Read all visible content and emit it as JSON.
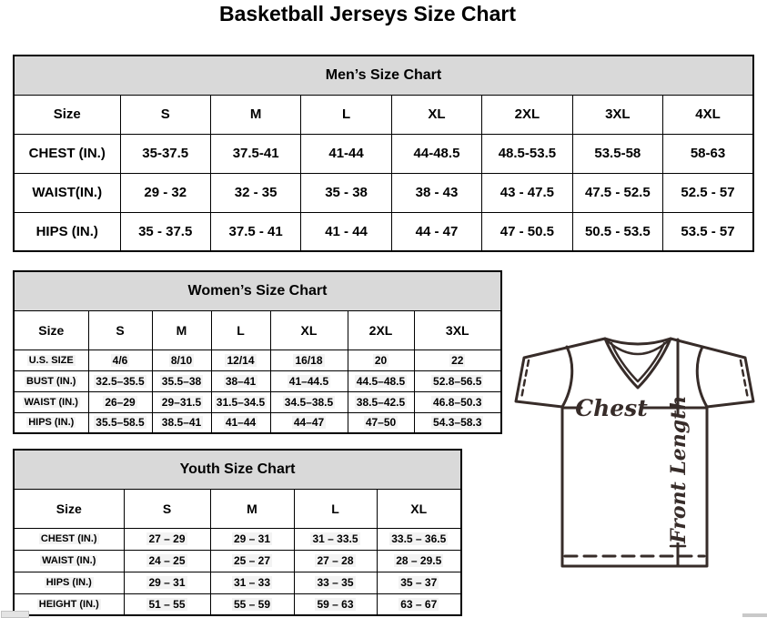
{
  "page": {
    "title": "Basketball Jerseys Size Chart"
  },
  "mens_chart": {
    "title": "Men’s Size Chart",
    "size_label": "Size",
    "columns": [
      "S",
      "M",
      "L",
      "XL",
      "2XL",
      "3XL",
      "4XL"
    ],
    "rows": [
      {
        "label": "CHEST (IN.)",
        "values": [
          "35-37.5",
          "37.5-41",
          "41-44",
          "44-48.5",
          "48.5-53.5",
          "53.5-58",
          "58-63"
        ]
      },
      {
        "label": "WAIST(IN.)",
        "values": [
          "29 - 32",
          "32 - 35",
          "35 - 38",
          "38 - 43",
          "43 - 47.5",
          "47.5 - 52.5",
          "52.5 - 57"
        ]
      },
      {
        "label": "HIPS (IN.)",
        "values": [
          "35 - 37.5",
          "37.5 - 41",
          "41 - 44",
          "44 - 47",
          "47 - 50.5",
          "50.5 - 53.5",
          "53.5 - 57"
        ]
      }
    ]
  },
  "womens_chart": {
    "title": "Women’s Size Chart",
    "size_label": "Size",
    "columns": [
      "S",
      "M",
      "L",
      "XL",
      "2XL",
      "3XL"
    ],
    "rows": [
      {
        "label": "U.S. SIZE",
        "values": [
          "4/6",
          "8/10",
          "12/14",
          "16/18",
          "20",
          "22"
        ]
      },
      {
        "label": "BUST (IN.)",
        "values": [
          "32.5–35.5",
          "35.5–38",
          "38–41",
          "41–44.5",
          "44.5–48.5",
          "52.8–56.5"
        ]
      },
      {
        "label": "WAIST (IN.)",
        "values": [
          "26–29",
          "29–31.5",
          "31.5–34.5",
          "34.5–38.5",
          "38.5–42.5",
          "46.8–50.3"
        ]
      },
      {
        "label": "HIPS (IN.)",
        "values": [
          "35.5–58.5",
          "38.5–41",
          "41–44",
          "44–47",
          "47–50",
          "54.3–58.3"
        ]
      }
    ]
  },
  "youth_chart": {
    "title": "Youth Size Chart",
    "size_label": "Size",
    "columns": [
      "S",
      "M",
      "L",
      "XL"
    ],
    "rows": [
      {
        "label": "CHEST (IN.)",
        "values": [
          "27 – 29",
          "29 – 31",
          "31 – 33.5",
          "33.5 – 36.5"
        ]
      },
      {
        "label": "WAIST (IN.)",
        "values": [
          "24 – 25",
          "25 – 27",
          "27 – 28",
          "28 – 29.5"
        ]
      },
      {
        "label": "HIPS (IN.)",
        "values": [
          "29 – 31",
          "31 – 33",
          "33 – 35",
          "35 – 37"
        ]
      },
      {
        "label": "HEIGHT (IN.)",
        "values": [
          "51 – 55",
          "55 – 59",
          "59 – 63",
          "63 – 67"
        ]
      }
    ]
  },
  "diagram": {
    "chest_label": "Chest",
    "front_length_label": "Front Length"
  },
  "colors": {
    "header_bg": "#d9d9d9",
    "table_border": "#000000",
    "jersey_stroke": "#372c29",
    "highlight": "#f3f3f3"
  }
}
